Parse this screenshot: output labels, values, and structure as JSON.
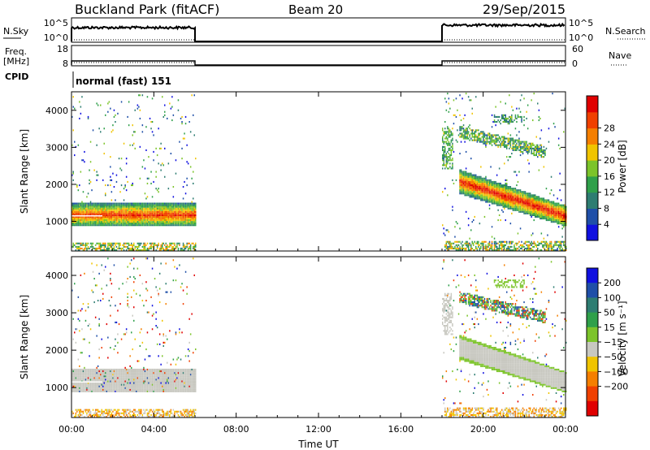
{
  "header": {
    "station": "Buckland Park (fitACF)",
    "beam": "Beam 20",
    "date": "29/Sep/2015"
  },
  "noise_panel": {
    "left_label": "N.Sky",
    "right_label": "N.Search",
    "y_tick_top": "10^5",
    "y_tick_bottom": "10^0"
  },
  "freq_panel": {
    "left_label_line1": "Freq.",
    "left_label_line2": "[MHz]",
    "left_ticks": [
      "18",
      "8"
    ],
    "right_label": "Nave",
    "right_ticks": [
      "60",
      "0"
    ]
  },
  "cpid_panel": {
    "label": "CPID",
    "program": "normal (fast) 151"
  },
  "colors": {
    "power": [
      "#1010e0",
      "#1f4fa8",
      "#2e7d72",
      "#2fa04a",
      "#7cc42a",
      "#f0c400",
      "#f57f00",
      "#f04000",
      "#e00000"
    ],
    "velocity": [
      "#1010e0",
      "#1f4fa8",
      "#2e7d72",
      "#2fa04a",
      "#7cc42a",
      "#c8c8c0",
      "#f0c400",
      "#f57f00",
      "#f04000",
      "#e00000"
    ]
  },
  "chart_data": [
    {
      "type": "heatmap",
      "name": "power",
      "ylabel": "Slant Range [km]",
      "yticks": [
        "1000",
        "2000",
        "3000",
        "4000"
      ],
      "ylim": [
        200,
        4500
      ],
      "xlim_hours": [
        0,
        24
      ],
      "colorbar_label": "Power [dB]",
      "colorbar_ticks": [
        "4",
        "8",
        "12",
        "16",
        "20",
        "24",
        "28"
      ],
      "colorbar_range": [
        0,
        32
      ],
      "data_intervals_hours": [
        [
          0,
          6
        ],
        [
          18,
          24
        ]
      ]
    },
    {
      "type": "heatmap",
      "name": "velocity",
      "ylabel": "Slant Range [km]",
      "yticks": [
        "1000",
        "2000",
        "3000",
        "4000"
      ],
      "ylim": [
        200,
        4500
      ],
      "xlim_hours": [
        0,
        24
      ],
      "colorbar_label": "Velocity [m s⁻¹]",
      "colorbar_ticks": [
        "200",
        "100",
        "50",
        "15",
        "−15",
        "−50",
        "−100",
        "−200"
      ],
      "xlabel": "Time UT",
      "xticks": [
        "00:00",
        "04:00",
        "08:00",
        "12:00",
        "16:00",
        "20:00",
        "00:00"
      ]
    }
  ]
}
